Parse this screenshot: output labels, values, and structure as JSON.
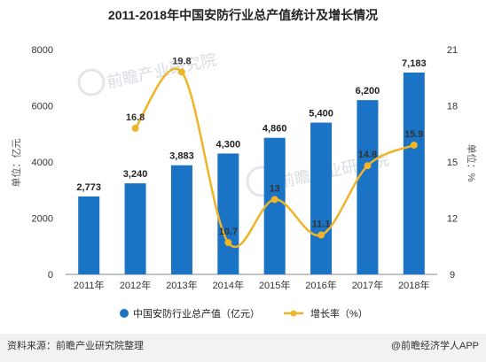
{
  "chart_data": {
    "type": "bar",
    "title": "2011-2018年中国安防行业总产值统计及增长情况",
    "categories": [
      "2011年",
      "2012年",
      "2013年",
      "2014年",
      "2015年",
      "2016年",
      "2017年",
      "2018年"
    ],
    "series": [
      {
        "name": "中国安防行业总产值（亿元）",
        "type": "bar",
        "axis": "left",
        "color": "#1a73c4",
        "values": [
          2773,
          3240,
          3883,
          4300,
          4860,
          5400,
          6200,
          7183
        ],
        "labels": [
          "2,773",
          "3,240",
          "3,883",
          "4,300",
          "4,860",
          "5,400",
          "6,200",
          "7,183"
        ]
      },
      {
        "name": "增长率（%）",
        "type": "line",
        "axis": "right",
        "color": "#f0b429",
        "values": [
          null,
          16.8,
          19.8,
          10.7,
          13,
          11.1,
          14.8,
          15.9
        ],
        "labels": [
          "",
          "16.8",
          "19.8",
          "10.7",
          "13",
          "11.1",
          "14.8",
          "15.9"
        ]
      }
    ],
    "ylabel": "单位：亿元",
    "y2label": "单位：%",
    "ylim": [
      0,
      8000
    ],
    "yticks": [
      "0",
      "2000",
      "4000",
      "6000",
      "8000"
    ],
    "y2lim": [
      9,
      21
    ],
    "y2ticks": [
      "9",
      "12",
      "15",
      "18",
      "21"
    ],
    "grid": false,
    "legend_position": "bottom"
  },
  "footer": {
    "source": "资料来源：前瞻产业研究院整理",
    "brand": "@前瞻经济学人APP"
  },
  "watermark": {
    "brand_cn": "前瞻产业研究院",
    "brand_en": "QIANZHAN INDUSTRY RESEARCH INSTITUTE"
  }
}
